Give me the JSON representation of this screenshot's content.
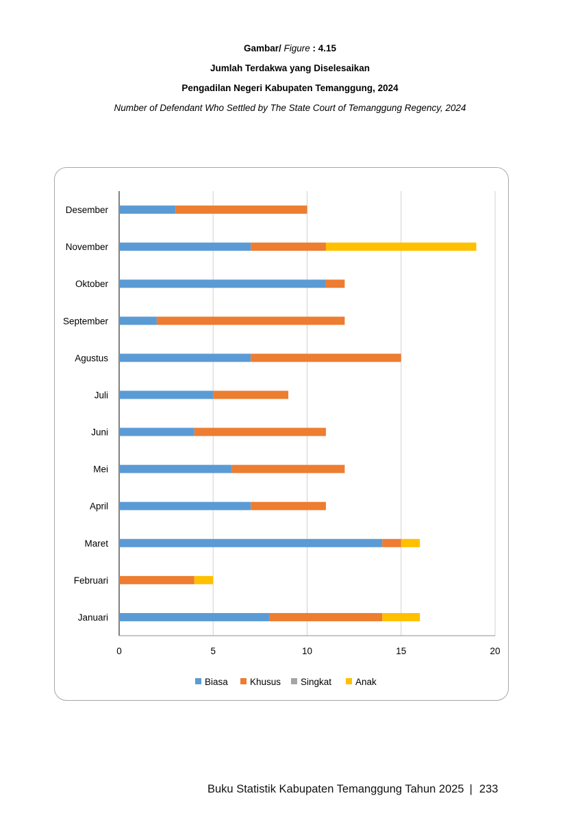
{
  "caption": {
    "label": "Gambar/",
    "label_en": "Figure",
    "number": ": 4.15",
    "title_id_1": "Jumlah Terdakwa yang Diselesaikan",
    "title_id_2": "Pengadilan Negeri Kabupaten Temanggung, 2024",
    "title_en": "Number of Defendant Who Settled by The State Court of Temanggung Regency, 2024"
  },
  "footer": {
    "book_title": "Buku Statistik Kabupaten Temanggung Tahun 2025",
    "separator": "|",
    "page_number": "233"
  },
  "chart_data": {
    "type": "bar",
    "orientation": "horizontal",
    "stacked": true,
    "categories": [
      "Januari",
      "Februari",
      "Maret",
      "April",
      "Mei",
      "Juni",
      "Juli",
      "Agustus",
      "September",
      "Oktober",
      "November",
      "Desember"
    ],
    "series": [
      {
        "name": "Biasa",
        "color": "#5b9bd5",
        "values": [
          8,
          0,
          14,
          7,
          6,
          4,
          5,
          7,
          2,
          11,
          7,
          3
        ]
      },
      {
        "name": "Khusus",
        "color": "#ed7d31",
        "values": [
          6,
          4,
          1,
          4,
          6,
          7,
          4,
          8,
          10,
          1,
          4,
          7
        ]
      },
      {
        "name": "Singkat",
        "color": "#a5a5a5",
        "values": [
          0,
          0,
          0,
          0,
          0,
          0,
          0,
          0,
          0,
          0,
          0,
          0
        ]
      },
      {
        "name": "Anak",
        "color": "#ffc000",
        "values": [
          2,
          1,
          1,
          0,
          0,
          0,
          0,
          0,
          0,
          0,
          8,
          0
        ]
      }
    ],
    "xlim": [
      0,
      20
    ],
    "xticks": [
      "0",
      "5",
      "10",
      "15",
      "20"
    ],
    "grid": "vertical",
    "legend": "bottom"
  }
}
